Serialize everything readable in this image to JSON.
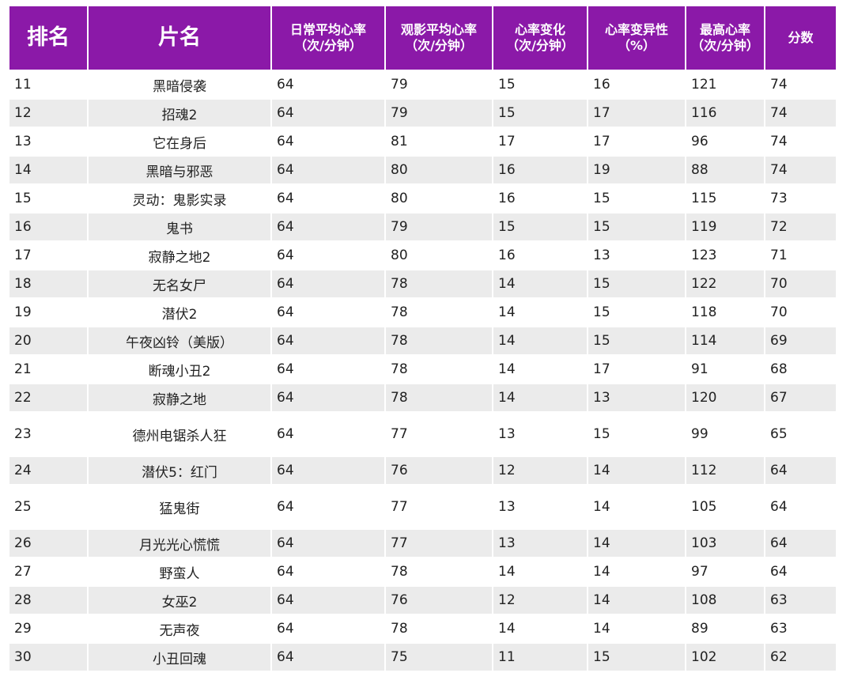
{
  "table": {
    "header": [
      [
        "排名"
      ],
      [
        "片名"
      ],
      [
        "日常平均心率",
        "（次/分钟）"
      ],
      [
        "观影平均心率",
        "（次/分钟）"
      ],
      [
        "心率变化",
        "（次/分钟）"
      ],
      [
        "心率变异性",
        "（%）"
      ],
      [
        "最高心率",
        "（次/分钟）"
      ],
      [
        "分数"
      ]
    ],
    "rows": [
      [
        11,
        "黑暗侵袭",
        64,
        79,
        15,
        16,
        121,
        74
      ],
      [
        12,
        "招魂2",
        64,
        79,
        15,
        17,
        116,
        74
      ],
      [
        13,
        "它在身后",
        64,
        81,
        17,
        17,
        96,
        74
      ],
      [
        14,
        "黑暗与邪恶",
        64,
        80,
        16,
        19,
        88,
        74
      ],
      [
        15,
        "灵动：鬼影实录",
        64,
        80,
        16,
        15,
        115,
        73
      ],
      [
        16,
        "鬼书",
        64,
        79,
        15,
        15,
        119,
        72
      ],
      [
        17,
        "寂静之地2",
        64,
        80,
        16,
        13,
        123,
        71
      ],
      [
        18,
        "无名女尸",
        64,
        78,
        14,
        15,
        122,
        70
      ],
      [
        19,
        "潜伏2",
        64,
        78,
        14,
        15,
        118,
        70
      ],
      [
        20,
        "午夜凶铃（美版）",
        64,
        78,
        14,
        15,
        114,
        69
      ],
      [
        21,
        "断魂小丑2",
        64,
        78,
        14,
        17,
        91,
        68
      ],
      [
        22,
        "寂静之地",
        64,
        78,
        14,
        13,
        120,
        67
      ],
      [
        23,
        "德州电锯杀人狂",
        64,
        77,
        13,
        15,
        99,
        65
      ],
      [
        24,
        "潜伏5：红门",
        64,
        76,
        12,
        14,
        112,
        64
      ],
      [
        25,
        "猛鬼街",
        64,
        77,
        13,
        14,
        105,
        64
      ],
      [
        26,
        "月光光心慌慌",
        64,
        77,
        13,
        14,
        103,
        64
      ],
      [
        27,
        "野蛮人",
        64,
        78,
        14,
        14,
        97,
        64
      ],
      [
        28,
        "女巫2",
        64,
        76,
        12,
        14,
        108,
        63
      ],
      [
        29,
        "无声夜",
        64,
        78,
        14,
        14,
        89,
        63
      ],
      [
        30,
        "小丑回魂",
        64,
        75,
        11,
        15,
        102,
        62
      ]
    ]
  }
}
